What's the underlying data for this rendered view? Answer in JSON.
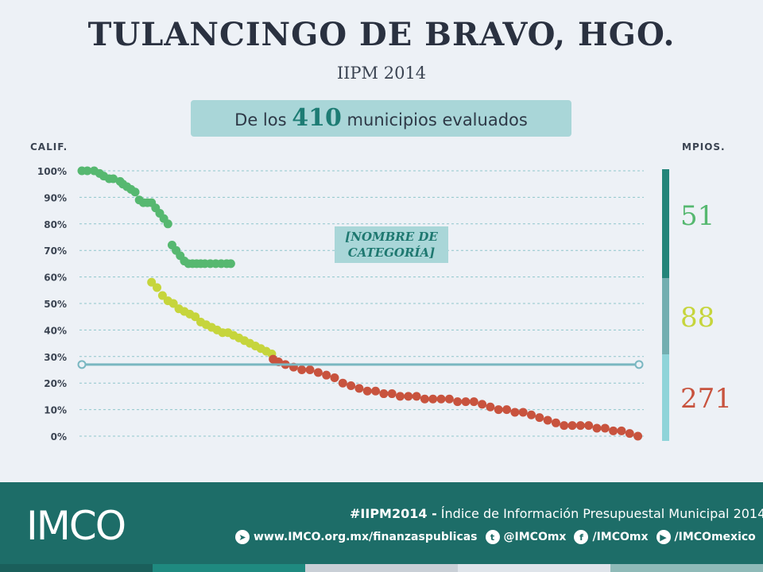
{
  "header": {
    "title": "TULANCINGO DE BRAVO, HGO.",
    "subtitle": "IIPM 2014"
  },
  "summary": {
    "prefix": "De los",
    "number": "410",
    "suffix": "municipios evaluados"
  },
  "axis_headers": {
    "left": "CALIF.",
    "right": "MPIOS."
  },
  "category_label": "[NOMBRE DE CATEGORÍA]",
  "counts": [
    {
      "value": "51",
      "color": "#56b870"
    },
    {
      "value": "88",
      "color": "#c6d53c"
    },
    {
      "value": "271",
      "color": "#c8533e"
    }
  ],
  "side_bar_colors": [
    "#23857a",
    "#73aeb0",
    "#8fd4d9"
  ],
  "reference_line": {
    "value": 27,
    "color": "#7ab7c1"
  },
  "chart_data": {
    "type": "scatter",
    "ylim": [
      0,
      100
    ],
    "yticks": [
      "0%",
      "10%",
      "20%",
      "30%",
      "40%",
      "50%",
      "60%",
      "70%",
      "80%",
      "90%",
      "100%"
    ],
    "n_municipios": 410,
    "series": [
      {
        "color": "#56b870",
        "x": [
          1,
          5,
          10,
          14,
          17,
          21,
          24,
          29,
          31,
          34,
          37,
          40,
          43,
          46,
          49,
          52,
          55,
          58,
          61,
          64,
          67,
          70,
          73,
          76,
          79,
          82,
          85,
          88,
          91,
          95,
          99,
          103,
          107,
          110
        ],
        "y": [
          100,
          100,
          100,
          99,
          98,
          97,
          97,
          96,
          95,
          94,
          93,
          92,
          89,
          88,
          88,
          88,
          86,
          84,
          82,
          80,
          72,
          70,
          68,
          66,
          65,
          65,
          65,
          65,
          65,
          65,
          65,
          65,
          65,
          65
        ]
      },
      {
        "color": "#c6d53c",
        "x": [
          52,
          56,
          60,
          64,
          68,
          72,
          76,
          80,
          84,
          88,
          92,
          96,
          100,
          104,
          108,
          112,
          116,
          120,
          124,
          128,
          132,
          136,
          140
        ],
        "y": [
          58,
          56,
          53,
          51,
          50,
          48,
          47,
          46,
          45,
          43,
          42,
          41,
          40,
          39,
          39,
          38,
          37,
          36,
          35,
          34,
          33,
          32,
          31
        ]
      },
      {
        "color": "#c8533e",
        "x": [
          141,
          145,
          150,
          156,
          162,
          168,
          174,
          180,
          186,
          192,
          198,
          204,
          210,
          216,
          222,
          228,
          234,
          240,
          246,
          252,
          258,
          264,
          270,
          276,
          282,
          288,
          294,
          300,
          306,
          312,
          318,
          324,
          330,
          336,
          342,
          348,
          354,
          360,
          366,
          372,
          378,
          384,
          390,
          396,
          402,
          408
        ],
        "y": [
          29,
          28,
          27,
          26,
          25,
          25,
          24,
          23,
          22,
          20,
          19,
          18,
          17,
          17,
          16,
          16,
          15,
          15,
          15,
          14,
          14,
          14,
          14,
          13,
          13,
          13,
          12,
          11,
          10,
          10,
          9,
          9,
          8,
          7,
          6,
          5,
          4,
          4,
          4,
          4,
          3,
          3,
          2,
          2,
          1,
          0
        ]
      }
    ]
  },
  "footer": {
    "logo": "IMCO",
    "hashtag": "#IIPM2014 -",
    "hashtag_desc": "Índice de Información Presupuestal Municipal 2014",
    "links": [
      {
        "icon": "telegram-icon",
        "glyph": "➤",
        "text": "www.IMCO.org.mx/finanzaspublicas"
      },
      {
        "icon": "twitter-icon",
        "glyph": "t",
        "text": "@IMCOmx"
      },
      {
        "icon": "facebook-icon",
        "glyph": "f",
        "text": "/IMCOmx"
      },
      {
        "icon": "youtube-icon",
        "glyph": "▶",
        "text": "/IMCOmexico"
      }
    ],
    "stripe_colors": [
      "#1a5f5b",
      "#1f8a80",
      "#c9cfd6",
      "#dfe4ea",
      "#8fbab8"
    ]
  }
}
